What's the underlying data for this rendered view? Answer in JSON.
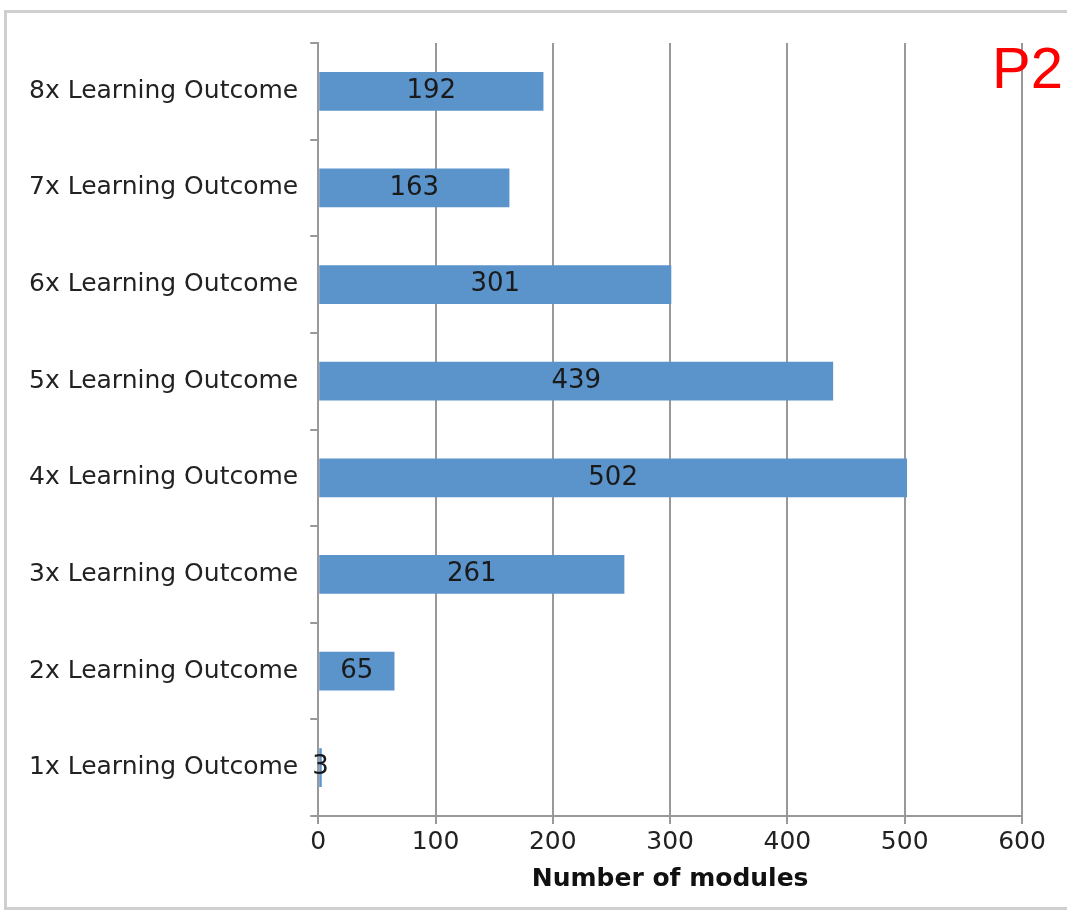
{
  "chart_data": {
    "type": "bar",
    "orientation": "horizontal",
    "xlabel": "Number of modules",
    "categories": [
      "8x Learning Outcome",
      "7x Learning Outcome",
      "6x Learning Outcome",
      "5x Learning Outcome",
      "4x Learning Outcome",
      "3x Learning Outcome",
      "2x Learning Outcome",
      "1x Learning Outcome"
    ],
    "values": [
      192,
      163,
      301,
      439,
      502,
      261,
      65,
      3
    ],
    "color": "#5b93cb",
    "xlim": [
      0,
      600
    ],
    "xticks": [
      0,
      100,
      200,
      300,
      400,
      500,
      600
    ],
    "grid": "x",
    "data_labels": true,
    "legend": false,
    "annotations": [
      "P2"
    ]
  }
}
